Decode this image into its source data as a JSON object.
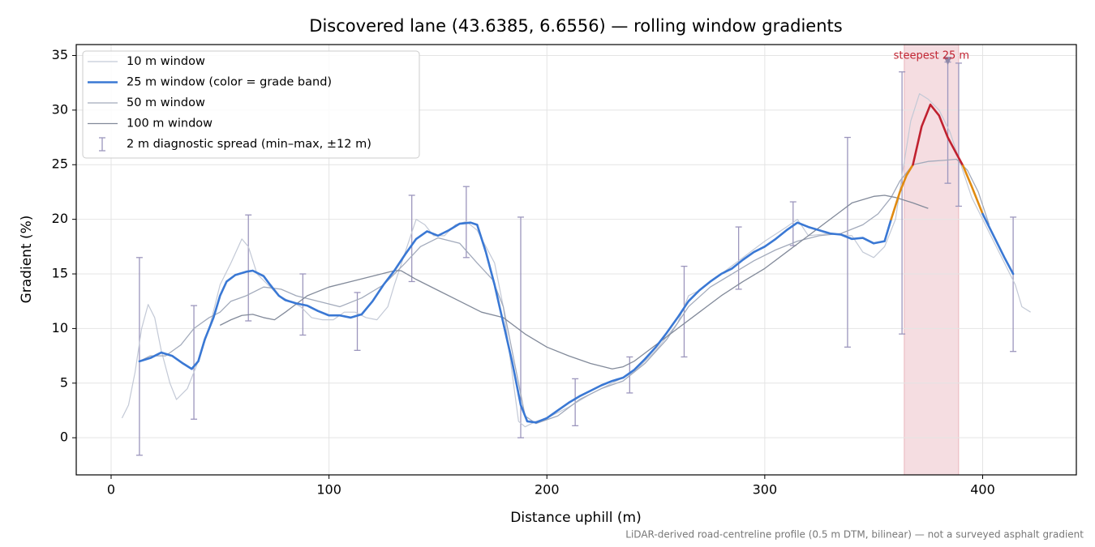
{
  "chart_data": {
    "type": "line",
    "title": "Discovered lane (43.6385, 6.6556) — rolling window gradients",
    "xlabel": "Distance uphill (m)",
    "ylabel": "Gradient (%)",
    "note": "LiDAR-derived road-centreline profile (0.5 m DTM, bilinear) — not a surveyed asphalt gradient",
    "xlim": [
      -16,
      443
    ],
    "ylim": [
      -3.4,
      36.0
    ],
    "xticks": [
      0,
      100,
      200,
      300,
      400
    ],
    "yticks": [
      0,
      5,
      10,
      15,
      20,
      25,
      30,
      35
    ],
    "grid": true,
    "legend": "upper left",
    "series": [
      {
        "name": "10 m window",
        "color": "#c3c9d6",
        "width": 1.2,
        "x": [
          5,
          8,
          11,
          14,
          17,
          20,
          23,
          27,
          30,
          35,
          40,
          45,
          50,
          55,
          60,
          63,
          67,
          72,
          77,
          82,
          87,
          92,
          97,
          102,
          107,
          112,
          117,
          122,
          127,
          130,
          135,
          140,
          144,
          148,
          153,
          158,
          163,
          168,
          172,
          176,
          180,
          184,
          187,
          190,
          195,
          200,
          210,
          220,
          230,
          240,
          250,
          260,
          265,
          270,
          280,
          290,
          300,
          310,
          315,
          320,
          330,
          340,
          345,
          350,
          355,
          360,
          363,
          367,
          371,
          375,
          380,
          385,
          390,
          395,
          400,
          405,
          410,
          415,
          418,
          422
        ],
        "values": [
          1.8,
          3,
          6,
          10,
          12.2,
          11,
          8,
          5,
          3.5,
          4.5,
          7,
          10,
          14,
          16,
          18.2,
          17.5,
          15,
          14,
          13,
          12.5,
          12,
          11,
          10.8,
          10.8,
          11.5,
          11.5,
          11,
          10.8,
          12,
          14,
          17,
          20,
          19.5,
          18.5,
          18.5,
          19.5,
          19.8,
          19,
          17.5,
          16,
          12,
          6,
          1.5,
          1,
          1.5,
          1.8,
          2.8,
          4,
          5,
          6,
          8,
          10.5,
          13,
          13.5,
          15,
          16.5,
          18,
          19.3,
          20,
          18.5,
          18.7,
          18.5,
          17,
          16.5,
          17.5,
          20,
          24,
          29,
          31.5,
          31,
          30,
          28,
          25,
          22,
          20,
          18,
          16,
          14,
          12,
          11.5
        ]
      },
      {
        "name": "25 m window (color = grade band)",
        "color": "#3a78d4",
        "width": 2.6,
        "band_colors": {
          "thresholds": [
            20,
            25
          ],
          "colors": [
            "#3a78d4",
            "#e08a10",
            "#c0212f"
          ]
        },
        "x": [
          13,
          18,
          23,
          28,
          33,
          37,
          40,
          43,
          47,
          50,
          53,
          57,
          62,
          65,
          70,
          73,
          77,
          80,
          85,
          90,
          95,
          100,
          105,
          110,
          115,
          120,
          125,
          130,
          135,
          140,
          145,
          150,
          155,
          160,
          165,
          168,
          172,
          176,
          180,
          184,
          188,
          191,
          195,
          200,
          205,
          210,
          215,
          220,
          225,
          230,
          235,
          240,
          245,
          250,
          255,
          260,
          265,
          270,
          275,
          280,
          285,
          290,
          295,
          300,
          305,
          310,
          315,
          320,
          325,
          330,
          335,
          340,
          345,
          350,
          355,
          358,
          362,
          365,
          368,
          372,
          376,
          380,
          384,
          388,
          391,
          395,
          400,
          405,
          410,
          414
        ],
        "values": [
          7,
          7.3,
          7.8,
          7.5,
          6.8,
          6.3,
          7,
          9,
          11,
          13,
          14.3,
          14.9,
          15.2,
          15.3,
          14.8,
          14,
          13,
          12.6,
          12.3,
          12.1,
          11.6,
          11.2,
          11.2,
          11,
          11.3,
          12.5,
          14,
          15.3,
          16.8,
          18.2,
          18.9,
          18.5,
          19,
          19.6,
          19.7,
          19.5,
          17,
          14,
          10.5,
          7,
          3,
          1.5,
          1.4,
          1.8,
          2.5,
          3.2,
          3.8,
          4.3,
          4.8,
          5.2,
          5.5,
          6.2,
          7.2,
          8.3,
          9.6,
          11,
          12.5,
          13.5,
          14.3,
          15,
          15.5,
          16.3,
          17,
          17.5,
          18.2,
          19,
          19.7,
          19.3,
          19,
          18.7,
          18.6,
          18.2,
          18.3,
          17.8,
          18,
          20,
          22.5,
          24,
          25,
          28.5,
          30.5,
          29.5,
          27.5,
          26,
          24.9,
          23,
          20.5,
          18.5,
          16.5,
          15
        ]
      },
      {
        "name": "50 m window",
        "color": "#a2aabb",
        "width": 1.3,
        "x": [
          13,
          18,
          25,
          32,
          38,
          45,
          50,
          55,
          62,
          70,
          78,
          85,
          95,
          105,
          115,
          125,
          135,
          142,
          150,
          160,
          168,
          175,
          180,
          185,
          190,
          195,
          205,
          215,
          225,
          235,
          245,
          255,
          265,
          275,
          285,
          295,
          305,
          315,
          325,
          335,
          345,
          352,
          358,
          362,
          368,
          375,
          382,
          388,
          393,
          398,
          403
        ],
        "values": [
          7,
          7.5,
          7.5,
          8.5,
          10,
          11,
          11.5,
          12.5,
          13,
          13.8,
          13.6,
          13,
          12.5,
          12,
          12.8,
          14,
          16,
          17.5,
          18.3,
          17.8,
          16,
          14.5,
          12,
          7,
          2,
          1.3,
          2,
          3.5,
          4.5,
          5.2,
          6.8,
          9,
          12,
          13.8,
          15,
          16.2,
          17.2,
          18,
          18.5,
          18.7,
          19.5,
          20.5,
          22,
          23.5,
          25,
          25.3,
          25.4,
          25.5,
          24.5,
          22.5,
          19.5
        ]
      },
      {
        "name": "100 m window",
        "color": "#828a9a",
        "width": 1.3,
        "x": [
          50,
          55,
          60,
          65,
          70,
          75,
          80,
          90,
          100,
          110,
          120,
          130,
          133,
          140,
          150,
          160,
          170,
          180,
          190,
          200,
          210,
          220,
          230,
          235,
          240,
          250,
          260,
          270,
          280,
          290,
          300,
          310,
          320,
          330,
          340,
          350,
          355,
          360,
          368,
          375
        ],
        "values": [
          10.3,
          10.8,
          11.2,
          11.3,
          11,
          10.8,
          11.5,
          13,
          13.8,
          14.3,
          14.8,
          15.3,
          15.3,
          14.5,
          13.5,
          12.5,
          11.5,
          11,
          9.5,
          8.3,
          7.5,
          6.8,
          6.3,
          6.5,
          7,
          8.5,
          10,
          11.5,
          13,
          14.3,
          15.5,
          17,
          18.5,
          20,
          21.5,
          22.1,
          22.2,
          22,
          21.5,
          21
        ]
      }
    ],
    "error_bars": {
      "name": "2 m diagnostic spread (min–max, ±12 m)",
      "color": "#9c96bd",
      "x": [
        13,
        38,
        63,
        88,
        113,
        138,
        163,
        188,
        213,
        238,
        263,
        288,
        313,
        338,
        363,
        384,
        389,
        414
      ],
      "low": [
        -1.6,
        1.7,
        10.7,
        9.4,
        8,
        14.3,
        16.5,
        0,
        1.1,
        4.1,
        7.4,
        13.6,
        17.6,
        8.3,
        9.5,
        23.3,
        21.2,
        7.9
      ],
      "high": [
        16.5,
        12.1,
        20.4,
        15,
        13.3,
        22.2,
        23,
        20.2,
        5.4,
        7.4,
        15.7,
        19.3,
        21.6,
        27.5,
        33.5,
        34.4,
        34.3,
        20.2
      ]
    },
    "highlight": {
      "xrange": [
        364,
        389
      ],
      "color": "#e8b4bc",
      "label": "steepest 25 m",
      "label_color": "#c0212f",
      "marker_x": 384,
      "marker_y": 34.5,
      "marker_color": "#8f88a8"
    }
  }
}
